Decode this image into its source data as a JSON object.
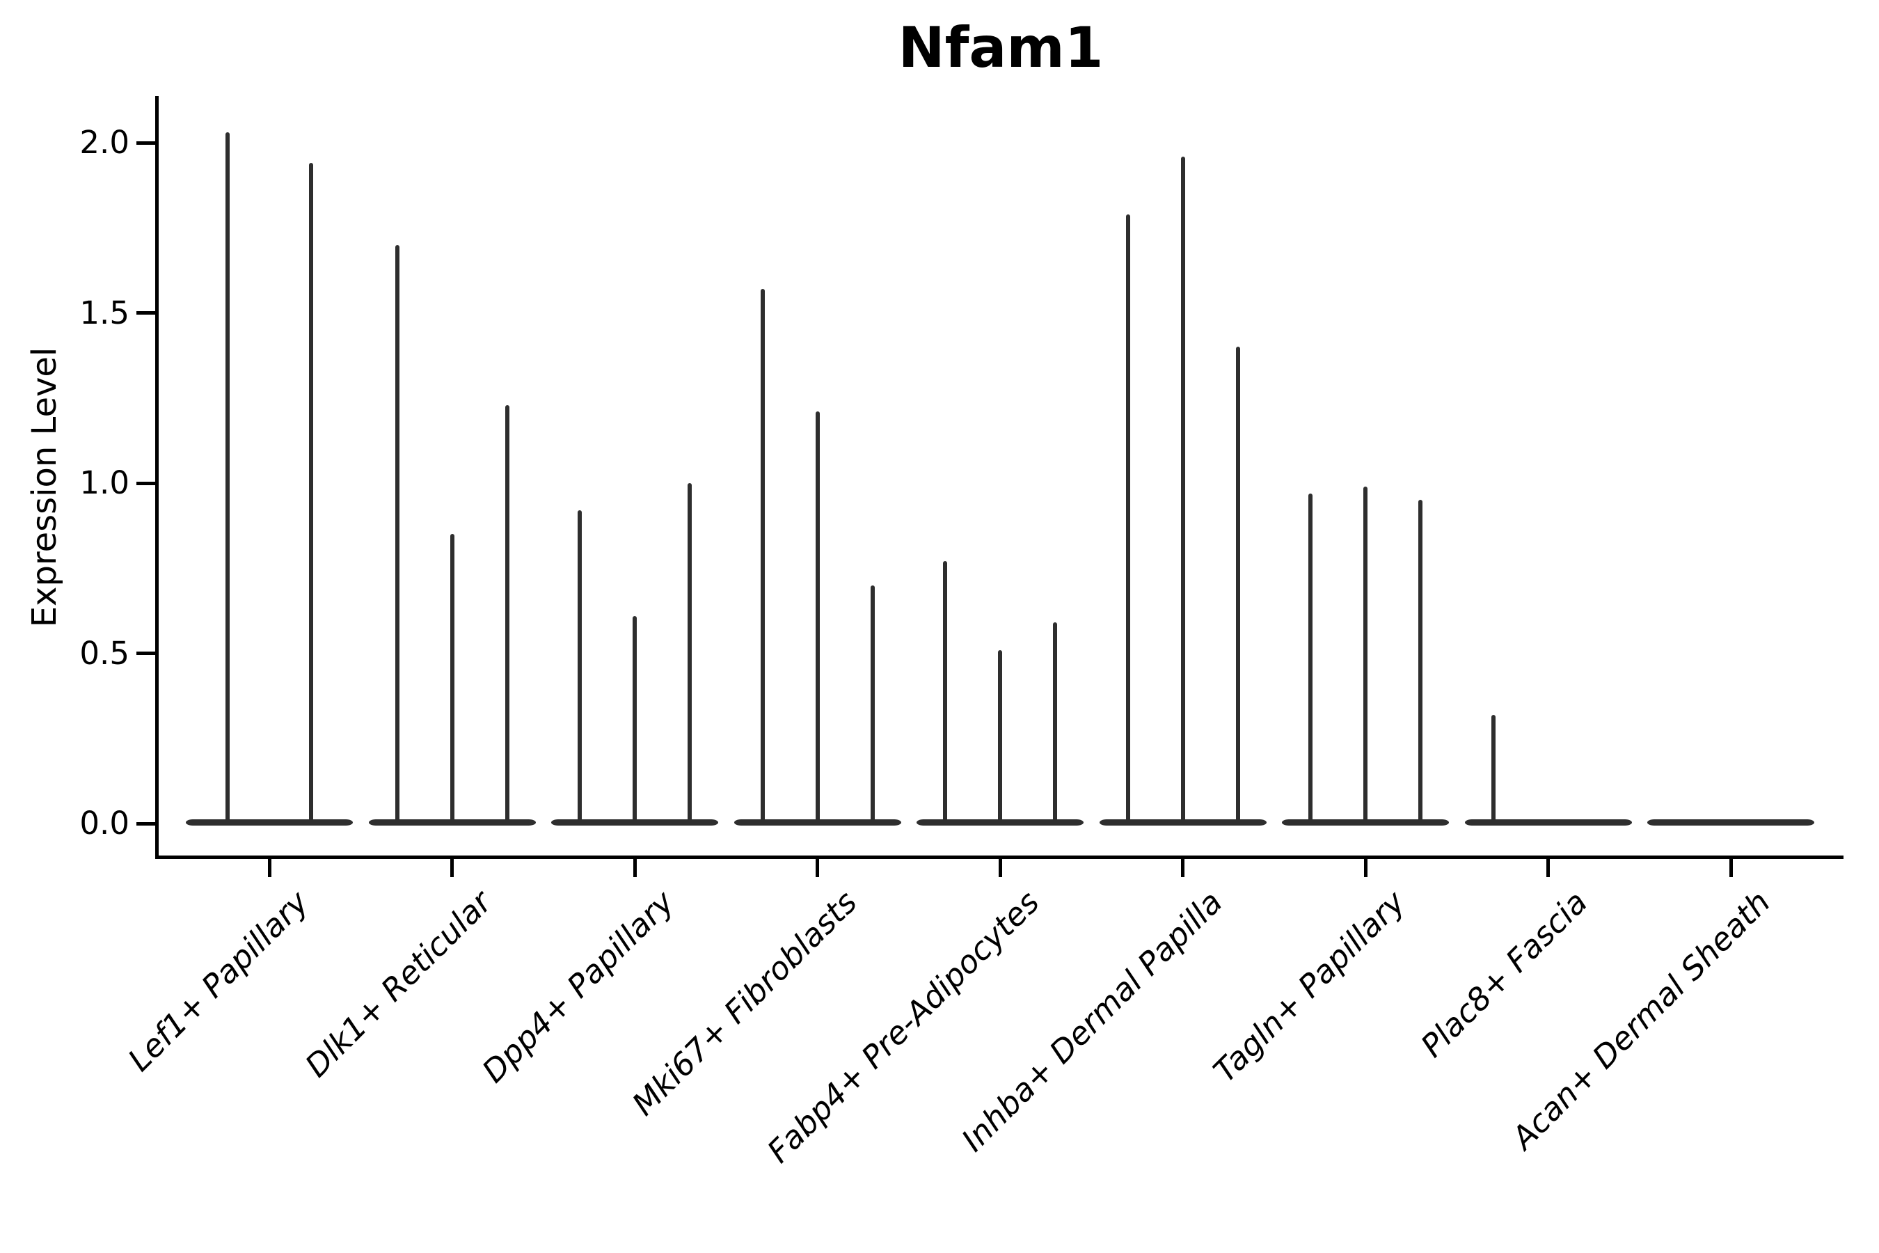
{
  "title": "Nfam1",
  "y_axis": {
    "label": "Expression Level",
    "tick_labels": [
      "0.0",
      "0.5",
      "1.0",
      "1.5",
      "2.0"
    ],
    "tick_values": [
      0.0,
      0.5,
      1.0,
      1.5,
      2.0
    ]
  },
  "x_axis": {
    "categories": [
      "Lef1+ Papillary",
      "Dlk1+ Reticular",
      "Dpp4+ Papillary",
      "Mki67+ Fibroblasts",
      "Fabp4+ Pre-Adipocytes",
      "Inhba+ Dermal Papilla",
      "Tagln+ Papillary",
      "Plac8+ Fascia",
      "Acan+ Dermal Sheath"
    ]
  },
  "chart_data": {
    "type": "violin",
    "title": "Nfam1",
    "xlabel": "",
    "ylabel": "Expression Level",
    "ylim": [
      0,
      2.1
    ],
    "y_ticks": [
      0.0,
      0.5,
      1.0,
      1.5,
      2.0
    ],
    "grid": false,
    "legend": "none",
    "violin_shape": "needle-spike-with-flat-base-at-zero",
    "ink_color": "#2e2e2e",
    "categories": [
      "Lef1+ Papillary",
      "Dlk1+ Reticular",
      "Dpp4+ Papillary",
      "Mki67+ Fibroblasts",
      "Fabp4+ Pre-Adipocytes",
      "Inhba+ Dermal Papilla",
      "Tagln+ Papillary",
      "Plac8+ Fascia",
      "Acan+ Dermal Sheath"
    ],
    "series": [
      {
        "category": "Lef1+ Papillary",
        "violin_peak_values": [
          2.03,
          1.94
        ]
      },
      {
        "category": "Dlk1+ Reticular",
        "violin_peak_values": [
          1.7,
          0.85,
          1.23
        ]
      },
      {
        "category": "Dpp4+ Papillary",
        "violin_peak_values": [
          0.92,
          0.61,
          1.0
        ]
      },
      {
        "category": "Mki67+ Fibroblasts",
        "violin_peak_values": [
          1.57,
          1.21,
          0.7
        ]
      },
      {
        "category": "Fabp4+ Pre-Adipocytes",
        "violin_peak_values": [
          0.77,
          0.51,
          0.59
        ]
      },
      {
        "category": "Inhba+ Dermal Papilla",
        "violin_peak_values": [
          1.79,
          1.96,
          1.4
        ]
      },
      {
        "category": "Tagln+ Papillary",
        "violin_peak_values": [
          0.97,
          0.99,
          0.95
        ]
      },
      {
        "category": "Plac8+ Fascia",
        "violin_peak_values": [
          0.32,
          0.0,
          0.0
        ]
      },
      {
        "category": "Acan+ Dermal Sheath",
        "violin_peak_values": [
          0.0,
          0.0,
          0.0
        ]
      }
    ]
  }
}
